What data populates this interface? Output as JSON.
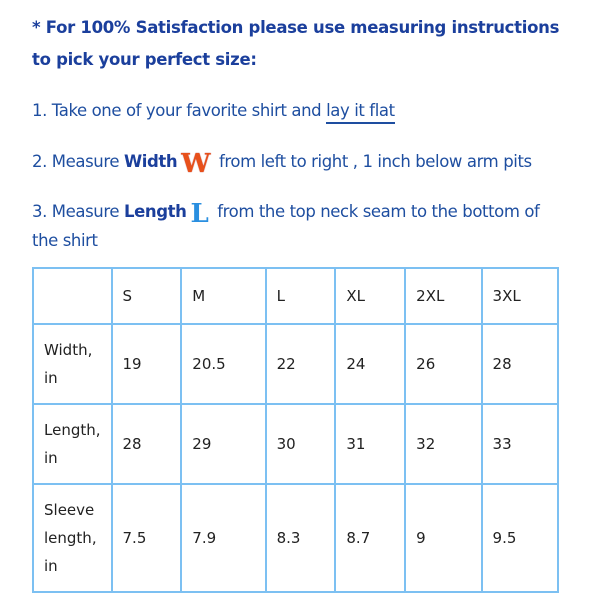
{
  "heading": [
    "* For 100% Satisfaction please use measuring instructions",
    "to pick your perfect size:"
  ],
  "steps": {
    "s1_pre": "1. Take one of your favorite shirt and ",
    "s1_link": "lay it flat",
    "s2_pre": "2. Measure ",
    "s2_bold": "Width",
    "s2_icon": "W",
    "s2_post": " from left to right , 1 inch below arm pits",
    "s3_pre": "3. Measure ",
    "s3_bold": "Length",
    "s3_icon": "L",
    "s3_post": " from the top neck seam to the bottom of",
    "s3_cont": "the shirt"
  },
  "table": {
    "headers": [
      "",
      "S",
      "M",
      "L",
      "XL",
      "2XL",
      "3XL"
    ],
    "rows": [
      {
        "label": [
          "Width,",
          "in"
        ],
        "values": [
          "19",
          "20.5",
          "22",
          "24",
          "26",
          "28"
        ]
      },
      {
        "label": [
          "Length,",
          "in"
        ],
        "values": [
          "28",
          "29",
          "30",
          "31",
          "32",
          "33"
        ]
      },
      {
        "label": [
          "Sleeve",
          "length,",
          "in"
        ],
        "values": [
          "7.5",
          "7.9",
          "8.3",
          "8.7",
          "9",
          "9.5"
        ]
      }
    ]
  },
  "colors": {
    "heading": "#1b3f9c",
    "text": "#1e4ea0",
    "border": "#7cc0f2",
    "width_icon": "#e8501a",
    "length_icon": "#2a8fe0"
  }
}
